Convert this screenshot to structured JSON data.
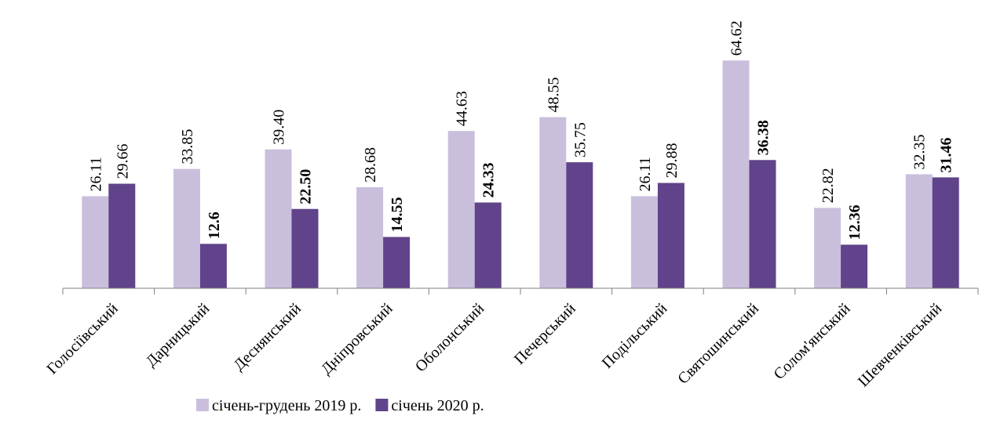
{
  "chart_data": {
    "type": "bar",
    "categories": [
      "Голосіївський",
      "Дарницький",
      "Деснянський",
      "Дніпровський",
      "Оболонський",
      "Печерський",
      "Подільський",
      "Святошинський",
      "Солом'янський",
      "Шевченківський"
    ],
    "series": [
      {
        "name": "січень-грудень 2019 р.",
        "color": "#c9bfdd",
        "values": [
          26.11,
          33.85,
          39.4,
          28.68,
          44.63,
          48.55,
          26.11,
          64.62,
          22.82,
          32.35
        ],
        "value_labels": [
          "26.11",
          "33.85",
          "39.40",
          "28.68",
          "44.63",
          "48.55",
          "26.11",
          "64.62",
          "22.82",
          "32.35"
        ],
        "value_label_bold": [
          false,
          false,
          false,
          false,
          false,
          false,
          false,
          false,
          false,
          false
        ]
      },
      {
        "name": "січень 2020 р.",
        "color": "#60438a",
        "values": [
          29.66,
          12.6,
          22.5,
          14.55,
          24.33,
          35.75,
          29.88,
          36.38,
          12.36,
          31.46
        ],
        "value_labels": [
          "29.66",
          "12.6",
          "22.50",
          "14.55",
          "24.33",
          "35.75",
          "29.88",
          "36.38",
          "12.36",
          "31.46"
        ],
        "value_label_bold": [
          false,
          true,
          true,
          true,
          true,
          false,
          false,
          true,
          true,
          true
        ]
      }
    ],
    "ylim": [
      0,
      70
    ],
    "legend": "bottom"
  }
}
